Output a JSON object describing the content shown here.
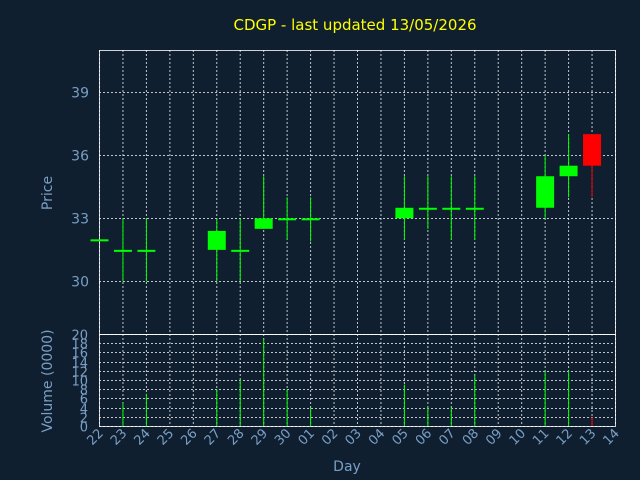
{
  "chart_data": {
    "type": "candlestick",
    "title": "CDGP - last updated 13/05/2026",
    "xlabel": "Day",
    "ylabel_price": "Price",
    "ylabel_volume": "Volume (0000)",
    "price_ylim": [
      27.5,
      41
    ],
    "price_ticks": [
      "30",
      "33",
      "36",
      "39"
    ],
    "volume_ylim": [
      0,
      20
    ],
    "volume_ticks": [
      "0",
      "2",
      "4",
      "6",
      "8",
      "10",
      "12",
      "14",
      "16",
      "18",
      "20"
    ],
    "x_ticks": [
      "22",
      "23",
      "24",
      "25",
      "26",
      "27",
      "28",
      "29",
      "30",
      "01",
      "02",
      "03",
      "04",
      "05",
      "06",
      "07",
      "08",
      "09",
      "10",
      "11",
      "12",
      "13",
      "14"
    ],
    "grid": true,
    "colors": {
      "up": "#00ff00",
      "down": "#ff0000",
      "background": "#0f1f30",
      "grid": "#ffffff",
      "axis_text": "#7a9fc4",
      "title": "#ffff00"
    },
    "candles": [
      {
        "day": "22",
        "open": 32.0,
        "high": 32.0,
        "low": 32.0,
        "close": 32.0,
        "volume": 0
      },
      {
        "day": "23",
        "open": 31.5,
        "high": 33.0,
        "low": 30.0,
        "close": 31.5,
        "volume": 5
      },
      {
        "day": "24",
        "open": 31.5,
        "high": 33.0,
        "low": 30.0,
        "close": 31.5,
        "volume": 7
      },
      {
        "day": "27",
        "open": 31.5,
        "high": 33.0,
        "low": 30.0,
        "close": 32.4,
        "volume": 8
      },
      {
        "day": "28",
        "open": 31.5,
        "high": 33.0,
        "low": 30.0,
        "close": 31.5,
        "volume": 10
      },
      {
        "day": "29",
        "open": 32.5,
        "high": 35.0,
        "low": 32.5,
        "close": 33.0,
        "volume": 19
      },
      {
        "day": "30",
        "open": 33.0,
        "high": 34.0,
        "low": 32.0,
        "close": 33.0,
        "volume": 8
      },
      {
        "day": "01",
        "open": 33.0,
        "high": 34.0,
        "low": 31.9,
        "close": 33.0,
        "volume": 4
      },
      {
        "day": "05",
        "open": 33.0,
        "high": 35.0,
        "low": 32.0,
        "close": 33.5,
        "volume": 9
      },
      {
        "day": "06",
        "open": 33.5,
        "high": 35.0,
        "low": 32.5,
        "close": 33.5,
        "volume": 4
      },
      {
        "day": "07",
        "open": 33.5,
        "high": 35.0,
        "low": 32.0,
        "close": 33.5,
        "volume": 4
      },
      {
        "day": "08",
        "open": 33.5,
        "high": 35.0,
        "low": 32.0,
        "close": 33.5,
        "volume": 11
      },
      {
        "day": "11",
        "open": 33.5,
        "high": 36.0,
        "low": 33.0,
        "close": 35.0,
        "volume": 12
      },
      {
        "day": "12",
        "open": 35.0,
        "high": 37.0,
        "low": 34.0,
        "close": 35.5,
        "volume": 12
      },
      {
        "day": "13",
        "open": 37.0,
        "high": 37.0,
        "low": 34.0,
        "close": 35.5,
        "volume": 2
      }
    ]
  }
}
